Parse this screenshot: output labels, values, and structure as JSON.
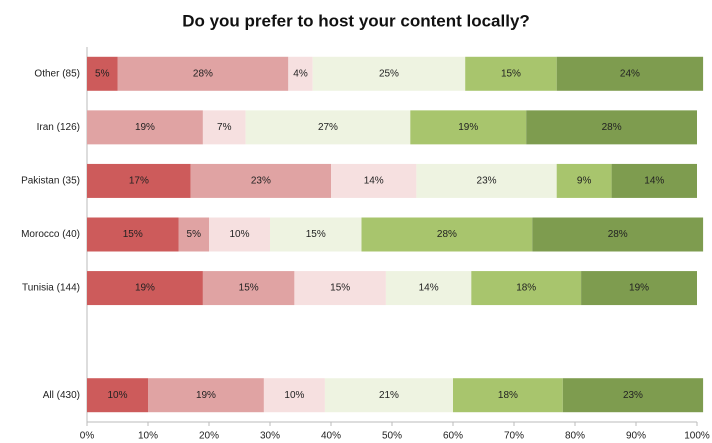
{
  "chart_data": {
    "type": "stacked-bar-horizontal",
    "title": "Do you prefer to host your content locally?",
    "categories": [
      "Other (85)",
      "Iran (126)",
      "Pakistan (35)",
      "Morocco (40)",
      "Tunisia (144)",
      null,
      "All (430)"
    ],
    "series": [
      {
        "color": "#cd5b5b",
        "values": [
          5,
          null,
          17,
          15,
          19,
          null,
          10
        ],
        "value_labels": [
          "5%",
          null,
          "17%",
          "15%",
          "19%",
          null,
          "10%"
        ]
      },
      {
        "color": "#e0a3a3",
        "values": [
          28,
          19,
          23,
          5,
          15,
          null,
          19
        ],
        "value_labels": [
          "28%",
          "19%",
          "23%",
          "5%",
          "15%",
          null,
          "19%"
        ]
      },
      {
        "color": "#f6e0e0",
        "values": [
          4,
          7,
          14,
          10,
          15,
          null,
          10
        ],
        "value_labels": [
          "4%",
          "7%",
          "14%",
          "10%",
          "15%",
          null,
          "10%"
        ]
      },
      {
        "color": "#eef3e1",
        "values": [
          25,
          27,
          23,
          15,
          14,
          null,
          21
        ],
        "value_labels": [
          "25%",
          "27%",
          "23%",
          "15%",
          "14%",
          null,
          "21%"
        ]
      },
      {
        "color": "#a8c56d",
        "values": [
          15,
          19,
          9,
          28,
          18,
          null,
          18
        ],
        "value_labels": [
          "15%",
          "19%",
          "9%",
          "28%",
          "18%",
          null,
          "18%"
        ]
      },
      {
        "color": "#7e9c4f",
        "values": [
          24,
          28,
          14,
          28,
          19,
          null,
          23
        ],
        "value_labels": [
          "24%",
          "28%",
          "14%",
          "28%",
          "19%",
          null,
          "23%"
        ]
      }
    ],
    "xlim": [
      0,
      100
    ],
    "xticks": [
      {
        "value": 0,
        "label": "0%"
      },
      {
        "value": 10,
        "label": "10%"
      },
      {
        "value": 20,
        "label": "20%"
      },
      {
        "value": 30,
        "label": "30%"
      },
      {
        "value": 40,
        "label": "40%"
      },
      {
        "value": 50,
        "label": "50%"
      },
      {
        "value": 60,
        "label": "60%"
      },
      {
        "value": 70,
        "label": "70%"
      },
      {
        "value": 80,
        "label": "80%"
      },
      {
        "value": 90,
        "label": "90%"
      },
      {
        "value": 100,
        "label": "100%"
      }
    ]
  }
}
